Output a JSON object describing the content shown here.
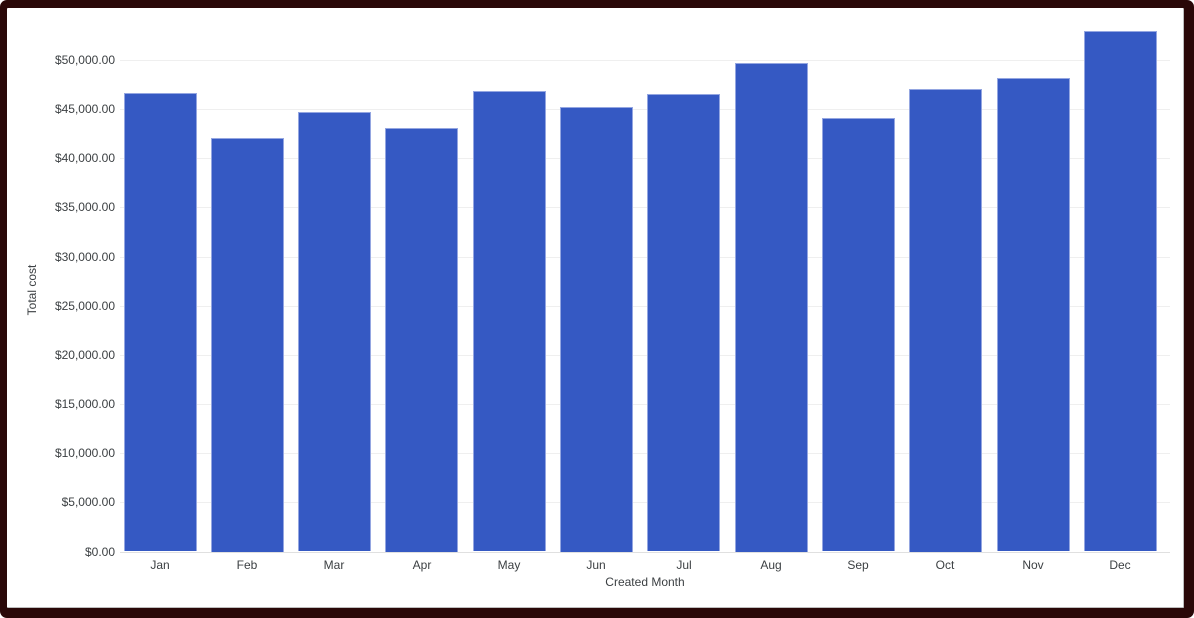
{
  "frame": {
    "border_color": "#2a0808",
    "panel_bg": "#ffffff"
  },
  "chart_data": {
    "type": "bar",
    "title": "",
    "categories": [
      "Jan",
      "Feb",
      "Mar",
      "Apr",
      "May",
      "Jun",
      "Jul",
      "Aug",
      "Sep",
      "Oct",
      "Nov",
      "Dec"
    ],
    "values": [
      46600,
      42100,
      44700,
      43100,
      46800,
      45250,
      46500,
      49700,
      44050,
      47100,
      48150,
      52900
    ],
    "xlabel": "Created Month",
    "ylabel": "Total cost",
    "ylim": [
      0,
      55000
    ],
    "ytick_step": 5000,
    "ytick_labels": [
      "$0.00",
      "$5,000.00",
      "$10,000.00",
      "$15,000.00",
      "$20,000.00",
      "$25,000.00",
      "$30,000.00",
      "$35,000.00",
      "$40,000.00",
      "$45,000.00",
      "$50,000.00"
    ],
    "grid": true,
    "legend": "none",
    "bar_color": "#3559c3",
    "bar_edge_color": "#94a6e1",
    "gridline_color": "#efefef",
    "baseline_color": "#e0e0e0",
    "axis_text_color": "#3c4043"
  }
}
